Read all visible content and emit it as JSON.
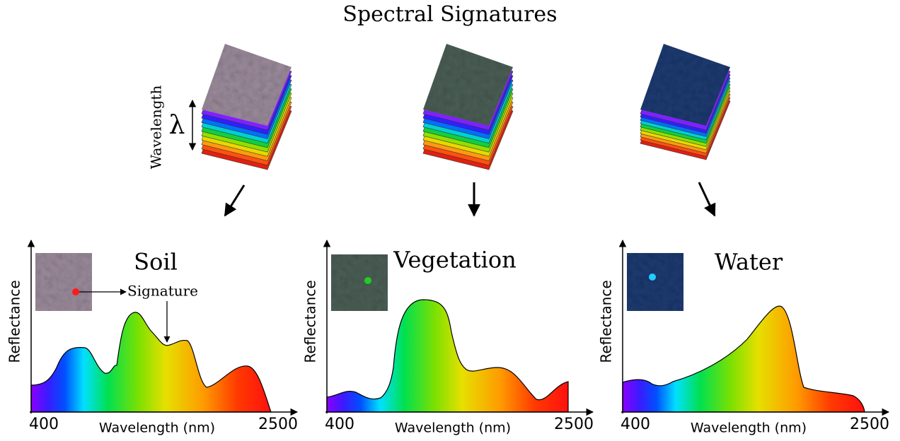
{
  "title": "Spectral Signatures",
  "stack_axis": {
    "label": "Wavelength",
    "symbol": "λ"
  },
  "panels": [
    {
      "title": "Soil",
      "y_label": "Reflectance",
      "x_label": "Wavelength (nm)",
      "x_ticks": [
        400,
        2500
      ],
      "annotation": "Signature"
    },
    {
      "title": "Vegetation",
      "y_label": "Reflectance",
      "x_label": "Wavelength (nm)",
      "x_ticks": [
        400,
        2500
      ]
    },
    {
      "title": "Water",
      "y_label": "Reflectance",
      "x_label": "Wavelength (nm)",
      "x_ticks": [
        400,
        2500
      ]
    }
  ]
}
